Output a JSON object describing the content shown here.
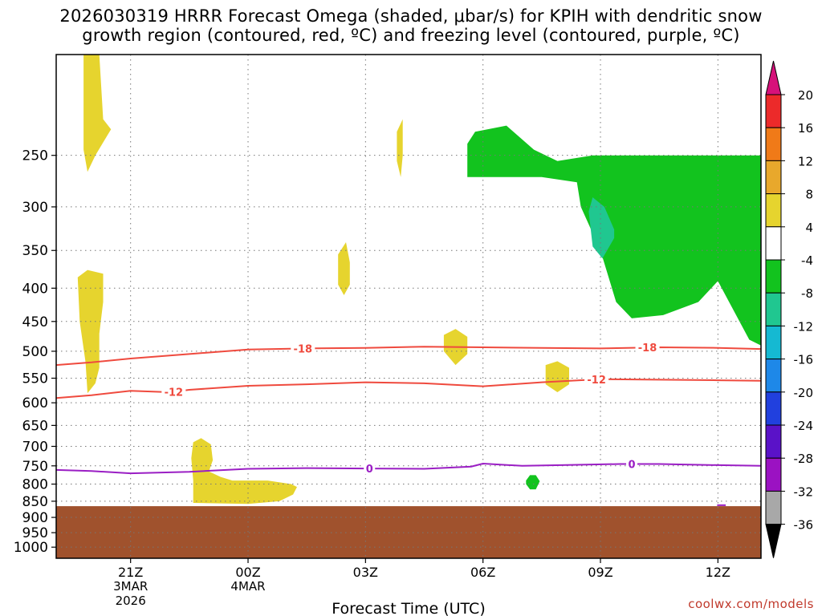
{
  "title": {
    "line1": "2026030319 HRRR Forecast Omega (shaded, μbar/s) for KPIH with dendritic snow",
    "line2": "growth region (contoured, red, ºC) and freezing level (contoured, purple, ºC)"
  },
  "credit": "coolwx.com/models",
  "colors": {
    "background": "#ffffff",
    "ground": "#a0522d",
    "dgz_contour": "#ef4a3e",
    "freezing_contour": "#9a1ec4",
    "grid": "#777777"
  },
  "chart_data": {
    "type": "heatmap",
    "title": "2026030319 HRRR Forecast Omega (shaded, μbar/s) for KPIH with dendritic snow growth region (contoured, red, ºC) and freezing level (contoured, purple, ºC)",
    "xlabel": "Forecast Time (UTC)",
    "ylabel": "",
    "xlim_hours": [
      -1.9,
      16.1
    ],
    "ylim_hpa": [
      175,
      1040
    ],
    "x_ticks": [
      {
        "h": 0,
        "label": "21Z",
        "sub": "3MAR",
        "sub2": "2026"
      },
      {
        "h": 3,
        "label": "00Z",
        "sub": "4MAR",
        "sub2": ""
      },
      {
        "h": 6,
        "label": "03Z",
        "sub": "",
        "sub2": ""
      },
      {
        "h": 9,
        "label": "06Z",
        "sub": "",
        "sub2": ""
      },
      {
        "h": 12,
        "label": "09Z",
        "sub": "",
        "sub2": ""
      },
      {
        "h": 15,
        "label": "12Z",
        "sub": "",
        "sub2": ""
      }
    ],
    "y_ticks": [
      250,
      300,
      350,
      400,
      450,
      500,
      550,
      600,
      650,
      700,
      750,
      800,
      850,
      900,
      950,
      1000
    ],
    "colorbar": {
      "labels": [
        "20",
        "16",
        "12",
        "8",
        "4",
        "-4",
        "-8",
        "-12",
        "-16",
        "-20",
        "-24",
        "-28",
        "-32",
        "-36"
      ],
      "colors": [
        "#d6117a",
        "#ec2a2a",
        "#f07a18",
        "#e8a82c",
        "#e6d42e",
        "#ffffff",
        "#12c31e",
        "#20c790",
        "#15b9d2",
        "#1e88e8",
        "#2140de",
        "#5a12c8",
        "#9b12c2",
        "#a8a8a8",
        "#000000"
      ]
    },
    "omega_regions": [
      {
        "value_range": "4 to 8",
        "color": "#e6d42e",
        "points": [
          [
            -1.2,
            175
          ],
          [
            -0.8,
            175
          ],
          [
            -0.7,
            220
          ],
          [
            -0.5,
            228
          ],
          [
            -0.9,
            250
          ],
          [
            -1.1,
            265
          ],
          [
            -1.2,
            245
          ]
        ]
      },
      {
        "value_range": "4 to 8",
        "color": "#e6d42e",
        "points": [
          [
            -1.35,
            385
          ],
          [
            -1.1,
            375
          ],
          [
            -0.7,
            380
          ],
          [
            -0.7,
            420
          ],
          [
            -0.8,
            470
          ],
          [
            -0.8,
            530
          ],
          [
            -0.9,
            560
          ],
          [
            -1.1,
            580
          ],
          [
            -1.15,
            520
          ],
          [
            -1.3,
            450
          ]
        ]
      },
      {
        "value_range": "4 to 8",
        "color": "#e6d42e",
        "points": [
          [
            6.8,
            230
          ],
          [
            6.95,
            220
          ],
          [
            6.95,
            250
          ],
          [
            6.9,
            270
          ],
          [
            6.8,
            255
          ]
        ]
      },
      {
        "value_range": "4 to 8",
        "color": "#e6d42e",
        "points": [
          [
            5.3,
            355
          ],
          [
            5.5,
            340
          ],
          [
            5.6,
            365
          ],
          [
            5.6,
            395
          ],
          [
            5.45,
            410
          ],
          [
            5.3,
            395
          ]
        ]
      },
      {
        "value_range": "4 to 8",
        "color": "#e6d42e",
        "points": [
          [
            8.0,
            472
          ],
          [
            8.3,
            462
          ],
          [
            8.6,
            475
          ],
          [
            8.6,
            505
          ],
          [
            8.3,
            525
          ],
          [
            8.0,
            500
          ]
        ]
      },
      {
        "value_range": "4 to 8",
        "color": "#e6d42e",
        "points": [
          [
            10.6,
            525
          ],
          [
            10.9,
            518
          ],
          [
            11.2,
            530
          ],
          [
            11.2,
            562
          ],
          [
            10.9,
            578
          ],
          [
            10.6,
            562
          ]
        ]
      },
      {
        "value_range": "4 to 8",
        "color": "#e6d42e",
        "points": [
          [
            1.6,
            690
          ],
          [
            1.8,
            680
          ],
          [
            2.05,
            695
          ],
          [
            2.1,
            735
          ],
          [
            2.0,
            765
          ],
          [
            2.3,
            780
          ],
          [
            2.6,
            790
          ],
          [
            3.5,
            790
          ],
          [
            4.1,
            800
          ],
          [
            4.25,
            808
          ],
          [
            4.15,
            830
          ],
          [
            3.8,
            850
          ],
          [
            3.0,
            858
          ],
          [
            1.6,
            855
          ],
          [
            1.6,
            790
          ],
          [
            1.55,
            730
          ]
        ]
      },
      {
        "value_range": "-4 to -8",
        "color": "#12c31e",
        "points": [
          [
            8.6,
            240
          ],
          [
            8.8,
            230
          ],
          [
            9.6,
            225
          ],
          [
            10.3,
            245
          ],
          [
            10.9,
            255
          ],
          [
            11.8,
            250
          ],
          [
            14.0,
            250
          ],
          [
            16.1,
            250
          ],
          [
            16.1,
            490
          ],
          [
            15.8,
            480
          ],
          [
            15.0,
            390
          ],
          [
            14.5,
            420
          ],
          [
            13.6,
            440
          ],
          [
            12.8,
            445
          ],
          [
            12.4,
            420
          ],
          [
            12.0,
            350
          ],
          [
            11.5,
            300
          ],
          [
            11.4,
            275
          ],
          [
            10.5,
            270
          ],
          [
            10.3,
            270
          ],
          [
            8.6,
            270
          ]
        ]
      },
      {
        "value_range": "-4 to -8",
        "color": "#12c31e",
        "points": [
          [
            10.1,
            790
          ],
          [
            10.2,
            775
          ],
          [
            10.35,
            775
          ],
          [
            10.45,
            792
          ],
          [
            10.35,
            815
          ],
          [
            10.2,
            815
          ],
          [
            10.1,
            800
          ]
        ]
      },
      {
        "value_range": "-8 to -12",
        "color": "#20c790",
        "points": [
          [
            11.8,
            290
          ],
          [
            12.1,
            300
          ],
          [
            12.35,
            325
          ],
          [
            12.35,
            335
          ],
          [
            12.05,
            360
          ],
          [
            11.8,
            345
          ],
          [
            11.7,
            305
          ]
        ]
      }
    ],
    "dgz_contours": [
      {
        "label": "-18",
        "label_at_h": [
          4.4,
          13.2
        ],
        "points": [
          [
            -1.9,
            525
          ],
          [
            -1.0,
            520
          ],
          [
            0,
            513
          ],
          [
            1.5,
            505
          ],
          [
            3.0,
            497
          ],
          [
            4.5,
            495
          ],
          [
            6.0,
            494
          ],
          [
            7.5,
            492
          ],
          [
            9.0,
            493
          ],
          [
            10.5,
            494
          ],
          [
            12.0,
            495
          ],
          [
            13.5,
            493
          ],
          [
            15.0,
            494
          ],
          [
            16.1,
            496
          ]
        ]
      },
      {
        "label": "-12",
        "label_at_h": [
          1.1,
          11.9
        ],
        "points": [
          [
            -1.9,
            590
          ],
          [
            -1.0,
            584
          ],
          [
            0,
            575
          ],
          [
            1.0,
            578
          ],
          [
            1.5,
            573
          ],
          [
            3.0,
            565
          ],
          [
            4.5,
            562
          ],
          [
            6.0,
            558
          ],
          [
            7.5,
            560
          ],
          [
            9.0,
            566
          ],
          [
            10.5,
            558
          ],
          [
            12.0,
            552
          ],
          [
            13.5,
            553
          ],
          [
            15.0,
            554
          ],
          [
            16.1,
            555
          ]
        ]
      }
    ],
    "freezing_contours": [
      {
        "label": "0",
        "label_at_h": [
          6.1,
          12.8
        ],
        "points": [
          [
            -1.9,
            761
          ],
          [
            -1.0,
            764
          ],
          [
            0,
            770
          ],
          [
            1.5,
            766
          ],
          [
            3.0,
            758
          ],
          [
            4.5,
            756
          ],
          [
            6.0,
            757
          ],
          [
            7.5,
            758
          ],
          [
            8.7,
            752
          ],
          [
            9.0,
            744
          ],
          [
            10.0,
            750
          ],
          [
            11.0,
            748
          ],
          [
            12.5,
            745
          ],
          [
            13.5,
            745
          ],
          [
            15.0,
            748
          ],
          [
            16.1,
            750
          ]
        ]
      }
    ],
    "ground_level_hpa": 865
  }
}
